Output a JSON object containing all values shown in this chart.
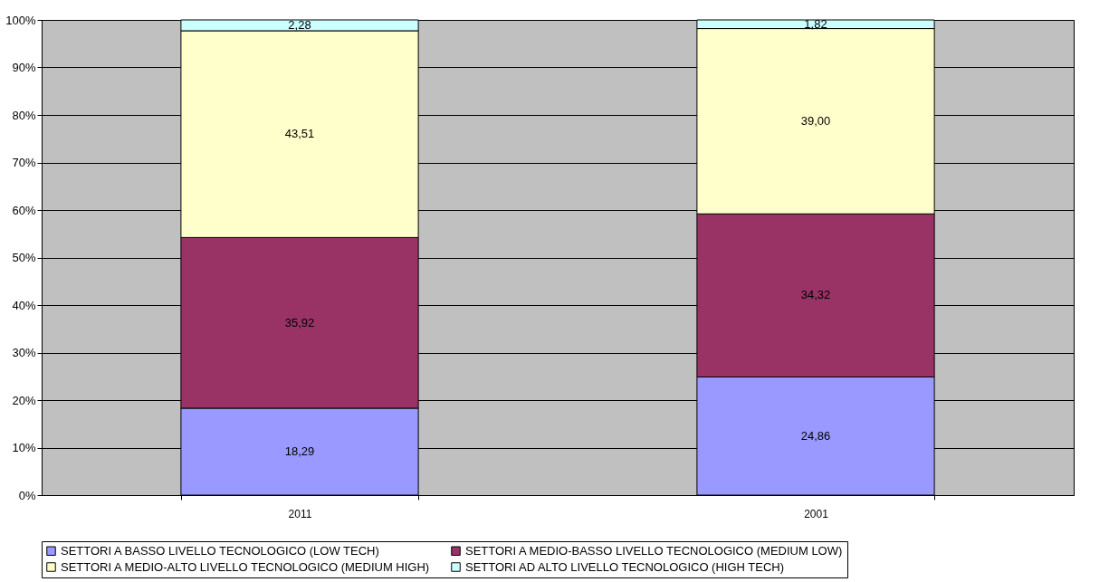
{
  "chart_data": {
    "type": "bar",
    "stacked": true,
    "categories": [
      "2011",
      "2001"
    ],
    "series": [
      {
        "name": "SETTORI A BASSO LIVELLO TECNOLOGICO (LOW TECH)",
        "color": "#9999ff",
        "values": [
          18.29,
          24.86
        ],
        "value_labels": [
          "18,29",
          "24,86"
        ]
      },
      {
        "name": "SETTORI A MEDIO-BASSO LIVELLO TECNOLOGICO (MEDIUM LOW)",
        "color": "#993366",
        "values": [
          35.92,
          34.32
        ],
        "value_labels": [
          "35,92",
          "34,32"
        ]
      },
      {
        "name": "SETTORI A MEDIO-ALTO LIVELLO TECNOLOGICO (MEDIUM HIGH)",
        "color": "#ffffcc",
        "values": [
          43.51,
          39.0
        ],
        "value_labels": [
          "43,51",
          "39,00"
        ]
      },
      {
        "name": "SETTORI AD ALTO LIVELLO TECNOLOGICO (HIGH TECH)",
        "color": "#ccffff",
        "values": [
          2.28,
          1.82
        ],
        "value_labels": [
          "2,28",
          "1,82"
        ]
      }
    ],
    "ylim": [
      0,
      100
    ],
    "yticks": [
      {
        "value": 0,
        "label": "0%"
      },
      {
        "value": 10,
        "label": "10%"
      },
      {
        "value": 20,
        "label": "20%"
      },
      {
        "value": 30,
        "label": "30%"
      },
      {
        "value": 40,
        "label": "40%"
      },
      {
        "value": 50,
        "label": "50%"
      },
      {
        "value": 60,
        "label": "60%"
      },
      {
        "value": 70,
        "label": "70%"
      },
      {
        "value": 80,
        "label": "80%"
      },
      {
        "value": 90,
        "label": "90%"
      },
      {
        "value": 100,
        "label": "100%"
      }
    ],
    "grid": "y",
    "legend": "bottom"
  }
}
